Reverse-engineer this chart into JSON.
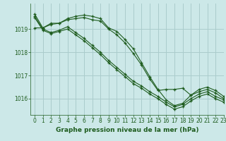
{
  "background_color": "#cce8e8",
  "grid_color": "#aacccc",
  "line_color": "#1e5c1e",
  "xlabel": "Graphe pression niveau de la mer (hPa)",
  "xlim": [
    -0.5,
    23
  ],
  "ylim": [
    1015.3,
    1020.1
  ],
  "yticks": [
    1016,
    1017,
    1018,
    1019
  ],
  "xticks": [
    0,
    1,
    2,
    3,
    4,
    5,
    6,
    7,
    8,
    9,
    10,
    11,
    12,
    13,
    14,
    15,
    16,
    17,
    18,
    19,
    20,
    21,
    22,
    23
  ],
  "series1": [
    1019.65,
    1019.05,
    null,
    null,
    null,
    null,
    null,
    null,
    null,
    1019.05,
    1019.0,
    null,
    null,
    null,
    null,
    null,
    null,
    null,
    null,
    null,
    null,
    null,
    null,
    null
  ],
  "series": [
    [
      1019.65,
      1019.05,
      1019.25,
      1019.25,
      1019.45,
      1019.55,
      1019.6,
      1019.55,
      1019.45,
      1019.05,
      1018.9,
      1018.55,
      1018.15,
      1017.55,
      1016.95,
      1016.4,
      1015.95,
      1015.7,
      1015.8,
      1016.15,
      1016.4,
      1016.5,
      1016.35,
      1016.1
    ],
    [
      1019.05,
      1019.05,
      1019.2,
      1019.25,
      1019.4,
      1019.45,
      1019.5,
      1019.4,
      1019.35,
      1019.0,
      1018.75,
      1018.4,
      1017.95,
      1017.45,
      1016.85,
      1016.35,
      1016.4,
      1016.4,
      1016.45,
      1016.15,
      1016.3,
      1016.4,
      1016.25,
      1016.0
    ],
    [
      1019.55,
      1019.0,
      1018.85,
      1018.95,
      1019.1,
      1018.85,
      1018.6,
      1018.3,
      1018.0,
      1017.65,
      1017.35,
      1017.05,
      1016.75,
      1016.55,
      1016.3,
      1016.1,
      1015.85,
      1015.65,
      1015.75,
      1016.0,
      1016.2,
      1016.3,
      1016.1,
      1015.95
    ],
    [
      1019.5,
      1018.95,
      1018.8,
      1018.9,
      1019.0,
      1018.75,
      1018.5,
      1018.2,
      1017.9,
      1017.55,
      1017.25,
      1016.95,
      1016.65,
      1016.45,
      1016.2,
      1016.0,
      1015.75,
      1015.55,
      1015.65,
      1015.9,
      1016.1,
      1016.2,
      1016.0,
      1015.85
    ]
  ]
}
